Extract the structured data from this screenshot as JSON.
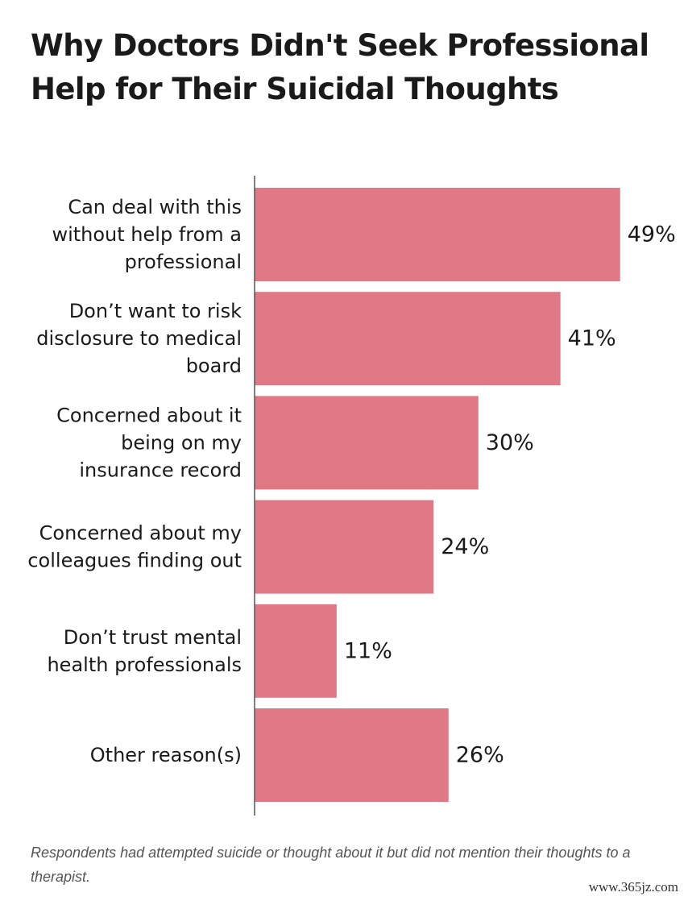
{
  "chart_data": {
    "type": "bar",
    "orientation": "horizontal",
    "title": "Why Doctors Didn't Seek Professional Help for Their Suicidal Thoughts",
    "categories": [
      [
        "Can deal with this",
        "without help from a",
        "professional"
      ],
      [
        "Don’t want to risk",
        "disclosure to medical",
        "board"
      ],
      [
        "Concerned about it",
        "being on my",
        "insurance record"
      ],
      [
        "Concerned about my",
        "colleagues finding out"
      ],
      [
        "Don’t trust mental",
        "health professionals"
      ],
      [
        "Other reason(s)"
      ]
    ],
    "values": [
      49,
      41,
      30,
      24,
      11,
      26
    ],
    "value_labels": [
      "49%",
      "41%",
      "30%",
      "24%",
      "11%",
      "26%"
    ],
    "xlim": [
      0,
      50
    ],
    "grid": false,
    "bar_color": "#e07985"
  },
  "footnote": "Respondents had attempted suicide or thought about it but did not mention their thoughts to a therapist.",
  "watermark": "www.365jz.com"
}
